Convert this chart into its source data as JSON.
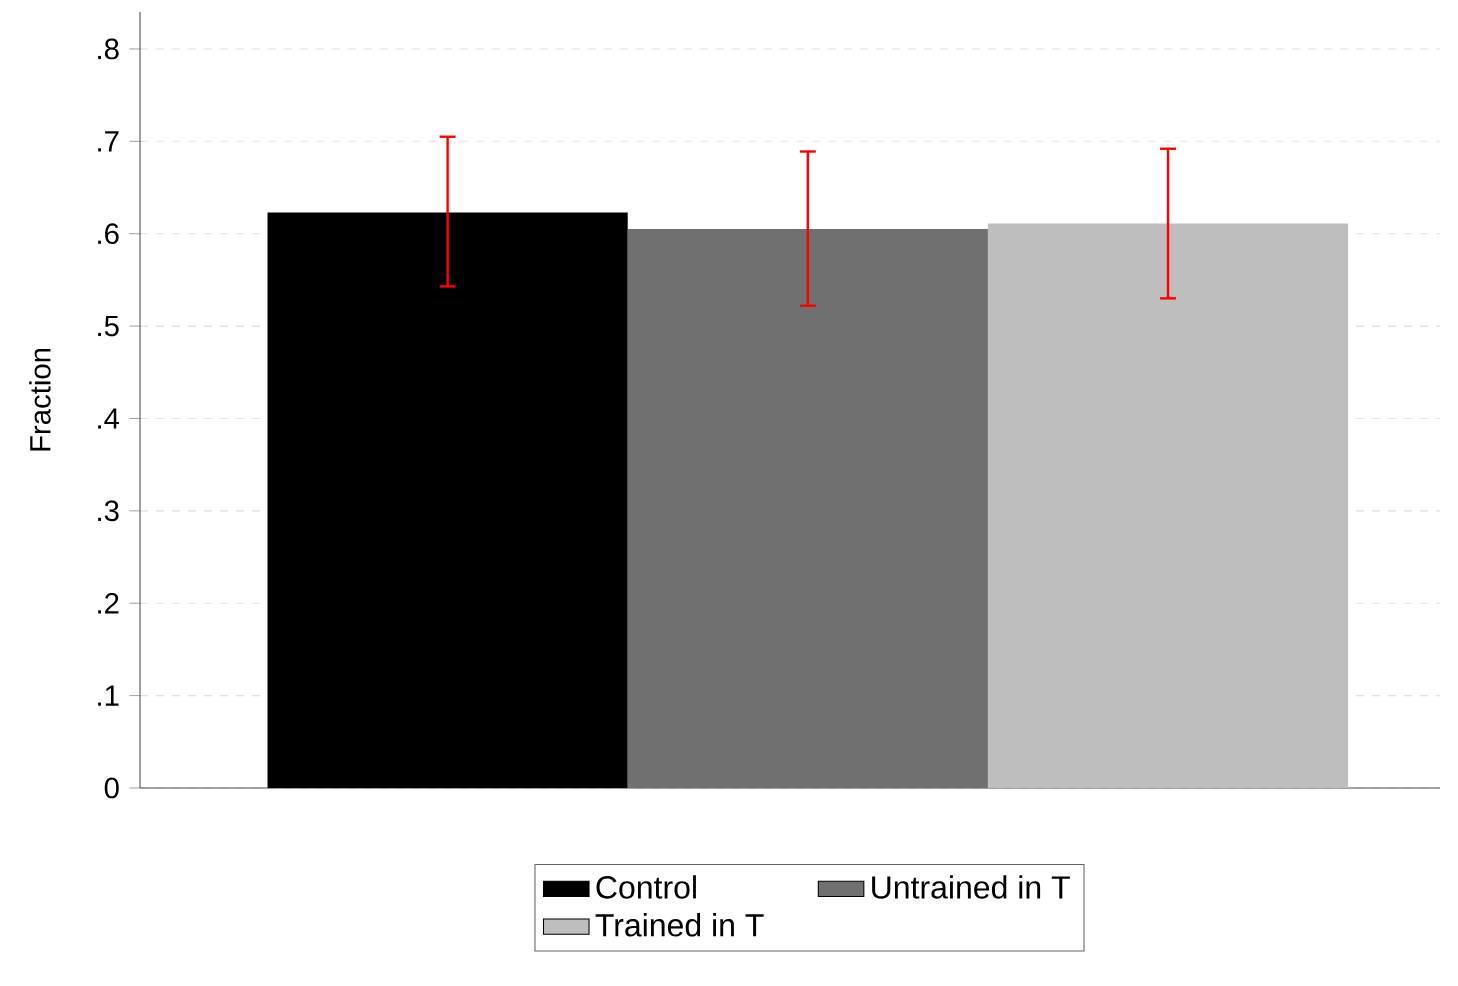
{
  "chart_data": {
    "type": "bar",
    "ylabel": "Fraction",
    "categories": [
      null
    ],
    "series": [
      {
        "name": "Control",
        "color": "#000000",
        "values": [
          0.623
        ],
        "errors": [
          [
            0.543,
            0.705
          ]
        ]
      },
      {
        "name": "Untrained in T",
        "color": "#707070",
        "values": [
          0.605
        ],
        "errors": [
          [
            0.522,
            0.689
          ]
        ]
      },
      {
        "name": "Trained in T",
        "color": "#bebebe",
        "values": [
          0.611
        ],
        "errors": [
          [
            0.53,
            0.692
          ]
        ]
      }
    ],
    "ylim": [
      0,
      0.84
    ],
    "yticks": [
      {
        "value": 0,
        "label": "0"
      },
      {
        "value": 0.1,
        "label": ".1"
      },
      {
        "value": 0.2,
        "label": ".2"
      },
      {
        "value": 0.3,
        "label": ".3"
      },
      {
        "value": 0.4,
        "label": ".4"
      },
      {
        "value": 0.5,
        "label": ".5"
      },
      {
        "value": 0.6,
        "label": ".6"
      },
      {
        "value": 0.7,
        "label": ".7"
      },
      {
        "value": 0.8,
        "label": ".8"
      }
    ],
    "grid": "y",
    "legend": "bottom"
  }
}
